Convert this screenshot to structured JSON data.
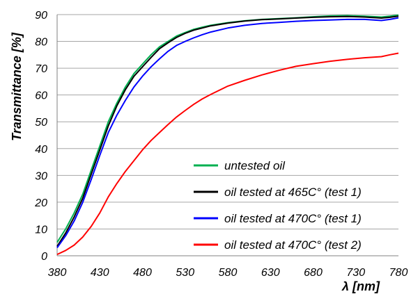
{
  "chart_data": {
    "type": "line",
    "xlabel": "λ [nm]",
    "ylabel": "Transmittance [%]",
    "xlim": [
      380,
      780
    ],
    "ylim": [
      0,
      90
    ],
    "xticks": [
      380,
      430,
      480,
      530,
      580,
      630,
      680,
      730,
      780
    ],
    "yticks": [
      0,
      10,
      20,
      30,
      40,
      50,
      60,
      70,
      80,
      90
    ],
    "grid": "horizontal",
    "legend_position": "bottom-right",
    "series": [
      {
        "name": "untested oil",
        "color": "#00b050",
        "x": [
          380,
          390,
          400,
          410,
          420,
          430,
          440,
          450,
          460,
          470,
          480,
          490,
          500,
          510,
          520,
          530,
          540,
          550,
          560,
          580,
          600,
          620,
          640,
          660,
          680,
          700,
          720,
          740,
          760,
          770,
          780
        ],
        "y": [
          5,
          10,
          16,
          23,
          32,
          41,
          50,
          57,
          63,
          68,
          71.5,
          75,
          78,
          80,
          82,
          83.3,
          84.5,
          85.3,
          86,
          87,
          87.7,
          88.2,
          88.5,
          88.8,
          89.2,
          89.5,
          89.6,
          89.4,
          89.1,
          89.4,
          89.8
        ]
      },
      {
        "name": "oil tested at 465C° (test 1)",
        "color": "#000000",
        "x": [
          380,
          390,
          400,
          410,
          420,
          430,
          440,
          450,
          460,
          470,
          480,
          490,
          500,
          510,
          520,
          530,
          540,
          550,
          560,
          580,
          600,
          620,
          640,
          660,
          680,
          700,
          720,
          740,
          760,
          770,
          780
        ],
        "y": [
          3.5,
          8.5,
          14.5,
          21.5,
          30.5,
          39.5,
          48.5,
          56,
          62,
          67,
          70.5,
          74,
          77.3,
          79.5,
          81.5,
          83,
          84.2,
          85,
          85.8,
          86.8,
          87.6,
          88.1,
          88.4,
          88.7,
          89,
          89.2,
          89.3,
          89.1,
          88.7,
          89,
          89.4
        ]
      },
      {
        "name": "oil tested at 470C° (test 1)",
        "color": "#0000ff",
        "x": [
          380,
          390,
          400,
          410,
          420,
          430,
          440,
          450,
          460,
          470,
          480,
          490,
          500,
          510,
          520,
          530,
          540,
          550,
          560,
          580,
          600,
          620,
          640,
          660,
          680,
          700,
          720,
          740,
          760,
          770,
          780
        ],
        "y": [
          3,
          7.5,
          13,
          20,
          28.5,
          37.5,
          46,
          52.5,
          58,
          63,
          67,
          70.5,
          73.5,
          76.3,
          78.5,
          80,
          81.3,
          82.5,
          83.5,
          85,
          86,
          86.7,
          87.1,
          87.5,
          87.8,
          88,
          88.2,
          88.2,
          87.8,
          88.2,
          88.8
        ]
      },
      {
        "name": "oil tested at 470C° (test 2)",
        "color": "#ff0000",
        "x": [
          380,
          390,
          400,
          410,
          420,
          430,
          440,
          450,
          460,
          470,
          480,
          490,
          500,
          510,
          520,
          530,
          540,
          550,
          560,
          580,
          600,
          620,
          640,
          660,
          680,
          700,
          720,
          740,
          760,
          770,
          780
        ],
        "y": [
          0.5,
          2,
          4,
          7,
          11,
          16,
          22,
          27,
          31.5,
          35.5,
          39.5,
          43,
          46,
          49,
          51.8,
          54.2,
          56.5,
          58.5,
          60.2,
          63.3,
          65.5,
          67.5,
          69.2,
          70.7,
          71.7,
          72.6,
          73.3,
          73.9,
          74.3,
          75,
          75.6
        ]
      }
    ]
  }
}
